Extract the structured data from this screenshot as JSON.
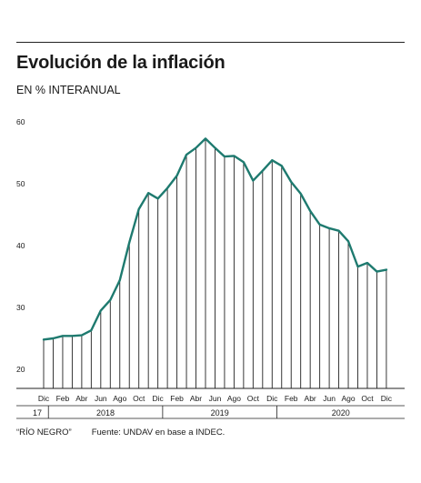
{
  "header": {
    "title": "Evolución de la inflación",
    "subtitle": "EN % INTERANUAL"
  },
  "footer": {
    "credit": "“RÍO NEGRO”",
    "source": "Fuente: UNDAV en base a INDEC."
  },
  "colors": {
    "line": "#1e7a6f",
    "bars": "#222222",
    "text": "#1a1a1a"
  },
  "chart_data": {
    "type": "line",
    "x": [
      "2017-12",
      "2018-01",
      "2018-02",
      "2018-03",
      "2018-04",
      "2018-05",
      "2018-06",
      "2018-07",
      "2018-08",
      "2018-09",
      "2018-10",
      "2018-11",
      "2018-12",
      "2019-01",
      "2019-02",
      "2019-03",
      "2019-04",
      "2019-05",
      "2019-06",
      "2019-07",
      "2019-08",
      "2019-09",
      "2019-10",
      "2019-11",
      "2019-12",
      "2020-01",
      "2020-02",
      "2020-03",
      "2020-04",
      "2020-05",
      "2020-06",
      "2020-07",
      "2020-08",
      "2020-09",
      "2020-10",
      "2020-11",
      "2020-12"
    ],
    "values": [
      24.8,
      25.0,
      25.4,
      25.4,
      25.5,
      26.3,
      29.5,
      31.2,
      34.4,
      40.5,
      45.9,
      48.5,
      47.6,
      49.3,
      51.3,
      54.7,
      55.8,
      57.3,
      55.8,
      54.4,
      54.5,
      53.5,
      50.5,
      52.1,
      53.8,
      52.9,
      50.3,
      48.4,
      45.6,
      43.4,
      42.8,
      42.4,
      40.7,
      36.6,
      37.2,
      35.8,
      36.1
    ],
    "yticks": [
      20,
      30,
      40,
      50,
      60
    ],
    "ylim": [
      18.5,
      61
    ],
    "month_labels": [
      "Dic",
      "",
      "Feb",
      "",
      "Abr",
      "",
      "Jun",
      "",
      "Ago",
      "",
      "Oct",
      "",
      "Dic",
      "",
      "Feb",
      "",
      "Abr",
      "",
      "Jun",
      "",
      "Ago",
      "",
      "Oct",
      "",
      "Dic",
      "",
      "Feb",
      "",
      "Abr",
      "",
      "Jun",
      "",
      "Ago",
      "",
      "Oct",
      "",
      "Dic"
    ],
    "year_labels": [
      {
        "label": "17",
        "start": 0,
        "end": 0
      },
      {
        "label": "2018",
        "start": 1,
        "end": 12
      },
      {
        "label": "2019",
        "start": 13,
        "end": 24
      },
      {
        "label": "2020",
        "start": 25,
        "end": 36
      }
    ],
    "grid": false,
    "legend": "none"
  }
}
